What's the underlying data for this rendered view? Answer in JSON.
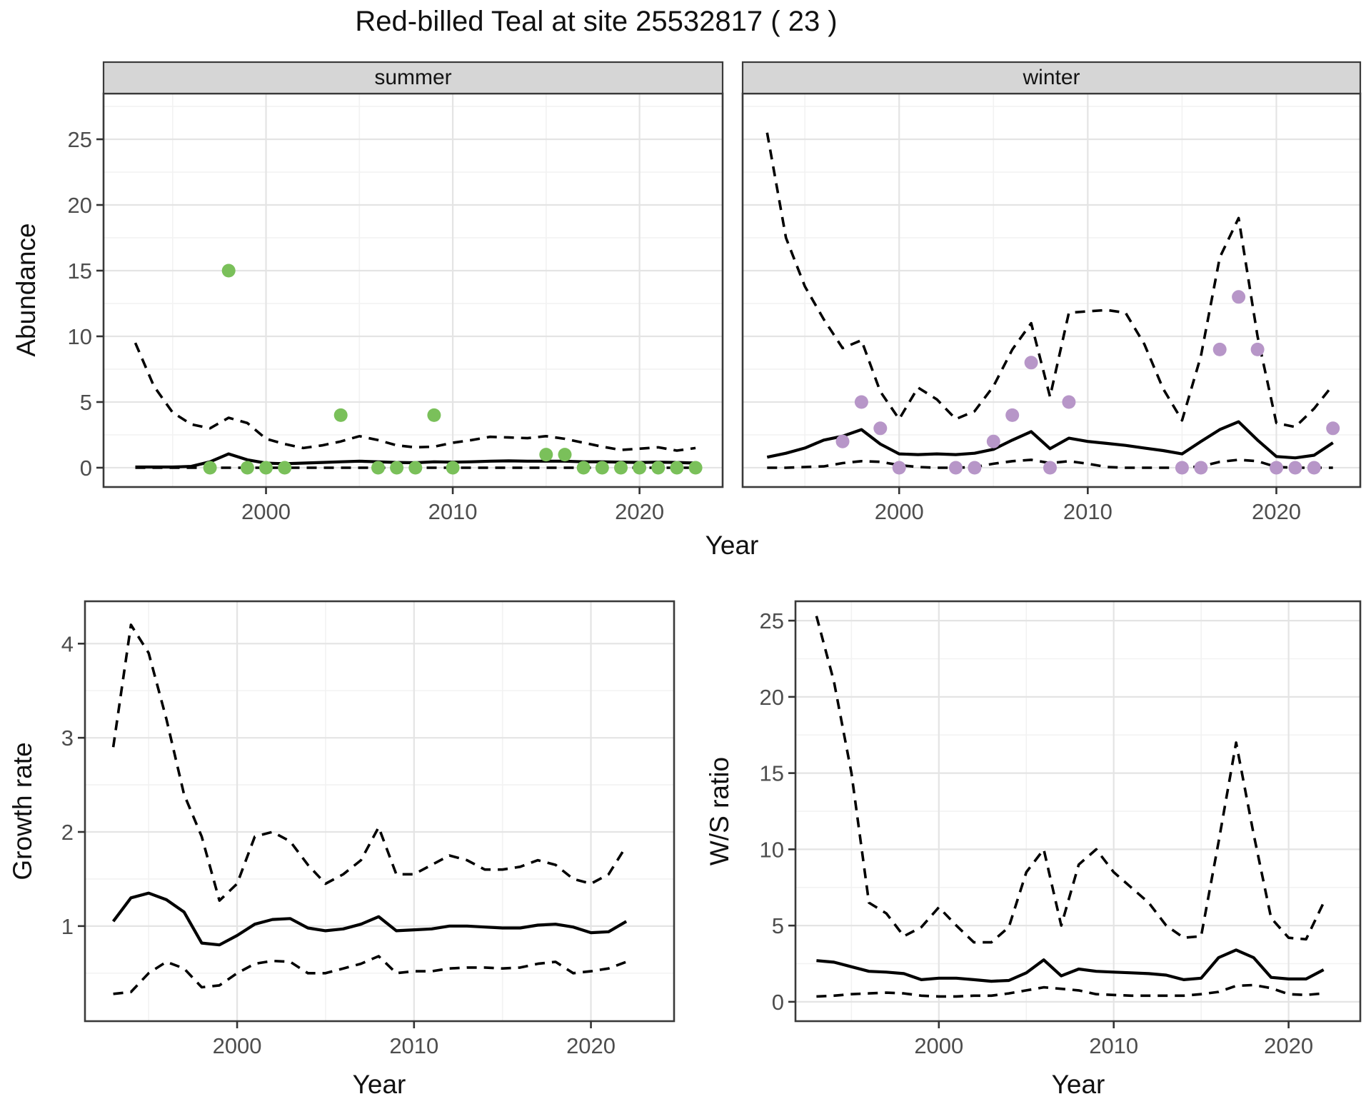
{
  "title": "Red-billed Teal at site 25532817 ( 23 )",
  "axis_labels": {
    "abundance": "Abundance",
    "year": "Year",
    "growth_rate": "Growth rate",
    "ws_ratio": "W/S ratio"
  },
  "facets": {
    "summer": "summer",
    "winter": "winter"
  },
  "colors": {
    "summer_points": "#7ac05a",
    "winter_points": "#b796c8",
    "estimate_line": "#000000",
    "ci_line": "#000000",
    "strip_bg": "#d6d6d6",
    "strip_border": "#3a3a3a",
    "panel_border": "#3a3a3a",
    "grid_major": "#e4e4e4",
    "grid_minor": "#f2f2f2",
    "tick_text": "#4d4d4d",
    "tick_mark": "#333333"
  },
  "chart_data": [
    {
      "id": "abundance_summer",
      "type": "line",
      "facet": "summer",
      "xlabel": "Year",
      "ylabel": "Abundance",
      "xlim": [
        1991.3,
        2024.45
      ],
      "ylim": [
        -1.47,
        28.48
      ],
      "xticks": [
        2000,
        2010,
        2020
      ],
      "x_minor": [
        1995,
        2005,
        2015
      ],
      "yticks": [
        0,
        5,
        10,
        15,
        20,
        25
      ],
      "y_minor": [
        2.5,
        7.5,
        12.5,
        17.5,
        22.5,
        27.5
      ],
      "grid": true,
      "x": [
        1993,
        1994,
        1995,
        1996,
        1997,
        1998,
        1999,
        2000,
        2001,
        2002,
        2003,
        2004,
        2005,
        2006,
        2007,
        2008,
        2009,
        2010,
        2011,
        2012,
        2013,
        2014,
        2015,
        2016,
        2017,
        2018,
        2019,
        2020,
        2021,
        2022,
        2023
      ],
      "series": [
        {
          "name": "estimate",
          "style": "solid",
          "values": [
            0.05,
            0.05,
            0.05,
            0.1,
            0.45,
            1.05,
            0.6,
            0.35,
            0.3,
            0.35,
            0.4,
            0.45,
            0.5,
            0.45,
            0.4,
            0.38,
            0.45,
            0.42,
            0.45,
            0.5,
            0.52,
            0.5,
            0.5,
            0.5,
            0.45,
            0.45,
            0.42,
            0.4,
            0.42,
            0.4,
            0.35
          ]
        },
        {
          "name": "lower_ci",
          "style": "dashed",
          "values": [
            0,
            0,
            0,
            0,
            0,
            0,
            0,
            0,
            0,
            0,
            0,
            0,
            0,
            0,
            0,
            0,
            0,
            0,
            0,
            0,
            0,
            0,
            0,
            0,
            0,
            0,
            0,
            0,
            0,
            0,
            0
          ]
        },
        {
          "name": "upper_ci",
          "style": "dashed",
          "values": [
            9.5,
            6.2,
            4.2,
            3.3,
            3.0,
            3.8,
            3.4,
            2.2,
            1.8,
            1.5,
            1.7,
            2.0,
            2.4,
            2.1,
            1.7,
            1.55,
            1.6,
            1.9,
            2.1,
            2.35,
            2.3,
            2.25,
            2.4,
            2.2,
            1.9,
            1.6,
            1.35,
            1.45,
            1.55,
            1.3,
            1.5
          ]
        }
      ],
      "points": {
        "color_key": "summer_points",
        "x": [
          1997,
          1998,
          1999,
          2000,
          2001,
          2004,
          2006,
          2007,
          2008,
          2009,
          2010,
          2015,
          2016,
          2017,
          2018,
          2019,
          2020,
          2021,
          2022,
          2023
        ],
        "y": [
          0,
          15,
          0,
          0,
          0,
          4,
          0,
          0,
          0,
          4,
          0,
          1,
          1,
          0,
          0,
          0,
          0,
          0,
          0,
          0
        ]
      }
    },
    {
      "id": "abundance_winter",
      "type": "line",
      "facet": "winter",
      "xlabel": "Year",
      "ylabel": "Abundance",
      "xlim": [
        1991.7,
        2024.45
      ],
      "ylim": [
        -1.47,
        28.48
      ],
      "xticks": [
        2000,
        2010,
        2020
      ],
      "x_minor": [
        1995,
        2005,
        2015
      ],
      "yticks": [
        0,
        5,
        10,
        15,
        20,
        25
      ],
      "y_minor": [
        2.5,
        7.5,
        12.5,
        17.5,
        22.5,
        27.5
      ],
      "grid": true,
      "x": [
        1993,
        1994,
        1995,
        1996,
        1997,
        1998,
        1999,
        2000,
        2001,
        2002,
        2003,
        2004,
        2005,
        2006,
        2007,
        2008,
        2009,
        2010,
        2011,
        2012,
        2013,
        2014,
        2015,
        2016,
        2017,
        2018,
        2019,
        2020,
        2021,
        2022,
        2023
      ],
      "series": [
        {
          "name": "estimate",
          "style": "solid",
          "values": [
            0.8,
            1.1,
            1.5,
            2.1,
            2.4,
            2.9,
            1.8,
            1.05,
            1.0,
            1.05,
            1.0,
            1.1,
            1.4,
            2.1,
            2.75,
            1.45,
            2.25,
            2.0,
            1.85,
            1.7,
            1.5,
            1.3,
            1.05,
            2.0,
            2.9,
            3.5,
            2.1,
            0.85,
            0.75,
            0.95,
            1.9
          ]
        },
        {
          "name": "lower_ci",
          "style": "dashed",
          "values": [
            0,
            0,
            0.05,
            0.1,
            0.35,
            0.5,
            0.45,
            0.2,
            0.05,
            0,
            0,
            0.05,
            0.3,
            0.5,
            0.6,
            0.35,
            0.5,
            0.3,
            0.05,
            0,
            0,
            0,
            0,
            0.1,
            0.45,
            0.6,
            0.5,
            0.05,
            0,
            0,
            0
          ]
        },
        {
          "name": "upper_ci",
          "style": "dashed",
          "values": [
            25.5,
            17.5,
            13.8,
            11.3,
            9.1,
            9.7,
            5.8,
            3.7,
            6.1,
            5.2,
            3.7,
            4.3,
            6.2,
            9.0,
            11.0,
            5.4,
            11.8,
            11.9,
            12.0,
            11.8,
            9.4,
            6.0,
            3.6,
            8.5,
            16.0,
            19.0,
            10.0,
            3.4,
            3.1,
            4.5,
            6.3
          ]
        }
      ],
      "points": {
        "color_key": "winter_points",
        "x": [
          1997,
          1998,
          1999,
          2000,
          2003,
          2004,
          2005,
          2006,
          2007,
          2008,
          2009,
          2015,
          2016,
          2017,
          2018,
          2019,
          2020,
          2021,
          2022,
          2023
        ],
        "y": [
          2,
          5,
          3,
          0,
          0,
          0,
          2,
          4,
          8,
          0,
          5,
          0,
          0,
          9,
          13,
          9,
          0,
          0,
          0,
          3
        ]
      }
    },
    {
      "id": "growth_rate",
      "type": "line",
      "facet": null,
      "xlabel": "Year",
      "ylabel": "Growth rate",
      "xlim": [
        1991.4,
        2024.7
      ],
      "ylim": [
        -0.01,
        4.45
      ],
      "xticks": [
        2000,
        2010,
        2020
      ],
      "x_minor": [
        1995,
        2005,
        2015
      ],
      "yticks": [
        1,
        2,
        3,
        4
      ],
      "y_minor": [
        0.5,
        1.5,
        2.5,
        3.5
      ],
      "grid": true,
      "x": [
        1993,
        1994,
        1995,
        1996,
        1997,
        1998,
        1999,
        2000,
        2001,
        2002,
        2003,
        2004,
        2005,
        2006,
        2007,
        2008,
        2009,
        2010,
        2011,
        2012,
        2013,
        2014,
        2015,
        2016,
        2017,
        2018,
        2019,
        2020,
        2021,
        2022
      ],
      "series": [
        {
          "name": "estimate",
          "style": "solid",
          "values": [
            1.05,
            1.3,
            1.35,
            1.28,
            1.15,
            0.82,
            0.8,
            0.9,
            1.02,
            1.07,
            1.08,
            0.98,
            0.95,
            0.97,
            1.02,
            1.1,
            0.95,
            0.96,
            0.97,
            1.0,
            1.0,
            0.99,
            0.98,
            0.98,
            1.01,
            1.02,
            0.99,
            0.93,
            0.94,
            1.05
          ]
        },
        {
          "name": "lower_ci",
          "style": "dashed",
          "values": [
            0.28,
            0.3,
            0.5,
            0.62,
            0.55,
            0.35,
            0.37,
            0.5,
            0.6,
            0.63,
            0.62,
            0.5,
            0.5,
            0.55,
            0.6,
            0.68,
            0.5,
            0.52,
            0.52,
            0.55,
            0.56,
            0.56,
            0.55,
            0.56,
            0.6,
            0.62,
            0.5,
            0.52,
            0.55,
            0.62
          ]
        },
        {
          "name": "upper_ci",
          "style": "dashed",
          "values": [
            2.9,
            4.2,
            3.9,
            3.2,
            2.4,
            1.95,
            1.27,
            1.45,
            1.95,
            2.0,
            1.9,
            1.65,
            1.45,
            1.55,
            1.7,
            2.05,
            1.55,
            1.55,
            1.65,
            1.75,
            1.7,
            1.6,
            1.6,
            1.63,
            1.7,
            1.65,
            1.5,
            1.45,
            1.55,
            1.85
          ]
        }
      ],
      "points": null
    },
    {
      "id": "ws_ratio",
      "type": "line",
      "facet": null,
      "xlabel": "Year",
      "ylabel": "W/S ratio",
      "xlim": [
        1991.8,
        2024.1
      ],
      "ylim": [
        -1.27,
        26.27
      ],
      "xticks": [
        2000,
        2010,
        2020
      ],
      "x_minor": [
        1995,
        2005,
        2015
      ],
      "yticks": [
        0,
        5,
        10,
        15,
        20,
        25
      ],
      "y_minor": [
        2.5,
        7.5,
        12.5,
        17.5,
        22.5
      ],
      "grid": true,
      "x": [
        1993,
        1994,
        1995,
        1996,
        1997,
        1998,
        1999,
        2000,
        2001,
        2002,
        2003,
        2004,
        2005,
        2006,
        2007,
        2008,
        2009,
        2010,
        2011,
        2012,
        2013,
        2014,
        2015,
        2016,
        2017,
        2018,
        2019,
        2020,
        2021,
        2022
      ],
      "series": [
        {
          "name": "estimate",
          "style": "solid",
          "values": [
            2.7,
            2.6,
            2.3,
            2.0,
            1.95,
            1.85,
            1.45,
            1.55,
            1.55,
            1.45,
            1.35,
            1.4,
            1.9,
            2.75,
            1.7,
            2.15,
            2.0,
            1.95,
            1.9,
            1.85,
            1.75,
            1.45,
            1.55,
            2.9,
            3.4,
            2.9,
            1.6,
            1.5,
            1.5,
            2.1
          ]
        },
        {
          "name": "lower_ci",
          "style": "dashed",
          "values": [
            0.35,
            0.4,
            0.5,
            0.55,
            0.6,
            0.55,
            0.4,
            0.35,
            0.35,
            0.4,
            0.4,
            0.55,
            0.75,
            0.95,
            0.85,
            0.75,
            0.5,
            0.45,
            0.4,
            0.4,
            0.4,
            0.4,
            0.5,
            0.65,
            1.05,
            1.1,
            0.9,
            0.5,
            0.45,
            0.55
          ]
        },
        {
          "name": "upper_ci",
          "style": "dashed",
          "values": [
            25.3,
            21.0,
            15.0,
            6.5,
            5.8,
            4.3,
            4.9,
            6.2,
            5.0,
            3.9,
            3.9,
            4.9,
            8.5,
            10.0,
            5.0,
            9.0,
            10.0,
            8.5,
            7.5,
            6.5,
            5.0,
            4.2,
            4.3,
            10.5,
            17.0,
            11.0,
            5.5,
            4.2,
            4.1,
            6.5
          ]
        }
      ],
      "points": null
    }
  ]
}
